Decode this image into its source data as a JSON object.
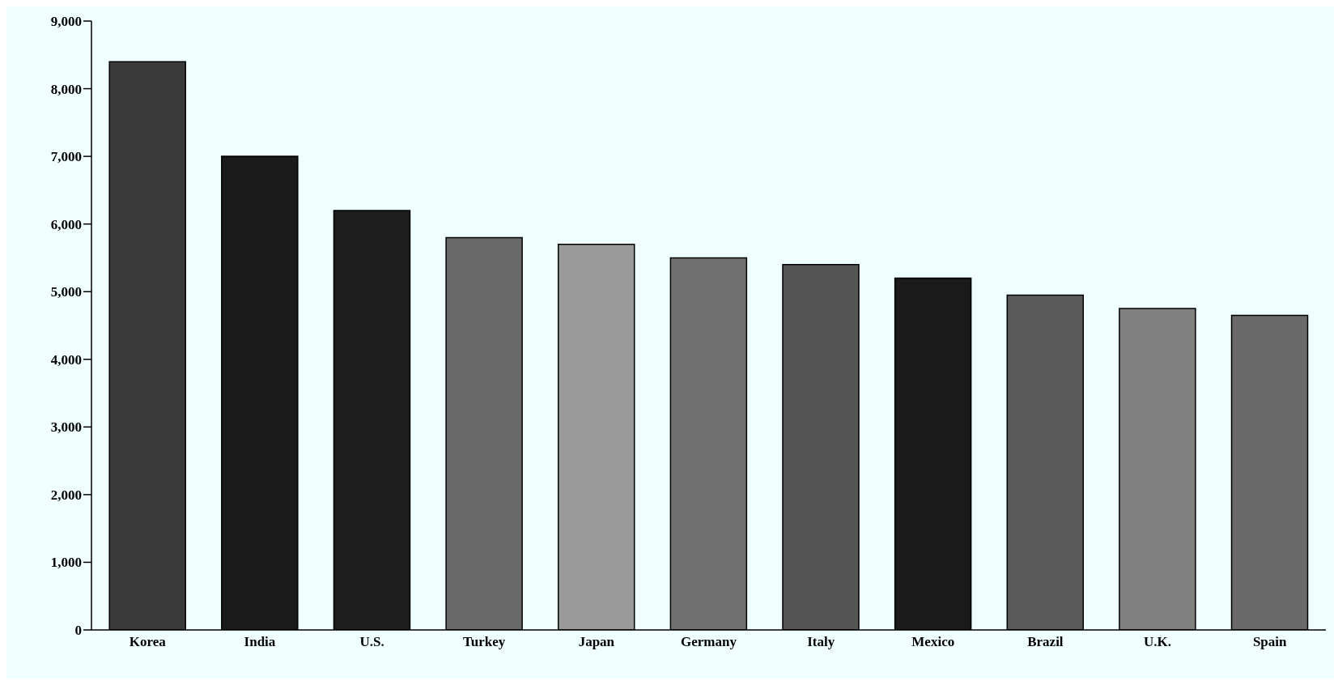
{
  "chart_data": {
    "type": "bar",
    "categories": [
      "Korea",
      "India",
      "U.S.",
      "Turkey",
      "Japan",
      "Germany",
      "Italy",
      "Mexico",
      "Brazil",
      "U.K.",
      "Spain"
    ],
    "values": [
      8400,
      7000,
      6200,
      5800,
      5700,
      5500,
      5400,
      5200,
      4950,
      4750,
      4650
    ],
    "colors": [
      "#3a3a3a",
      "#1a1a1a",
      "#1e1e1e",
      "#6a6a6a",
      "#9a9a9a",
      "#707070",
      "#555555",
      "#1a1a1a",
      "#5a5a5a",
      "#808080",
      "#6a6a6a"
    ],
    "ylim": [
      0,
      9000
    ],
    "yticks": [
      0,
      {
        "value": 1000,
        "label": "1,000"
      },
      {
        "value": 2000,
        "label": "2,000"
      },
      {
        "value": 3000,
        "label": "3,000"
      },
      {
        "value": 4000,
        "label": "4,000"
      },
      {
        "value": 5000,
        "label": "5,000"
      },
      {
        "value": 6000,
        "label": "6,000"
      },
      {
        "value": 7000,
        "label": "7,000"
      },
      {
        "value": 8000,
        "label": "8,000"
      },
      {
        "value": 9000,
        "label": "9,000"
      }
    ],
    "grid": false
  }
}
